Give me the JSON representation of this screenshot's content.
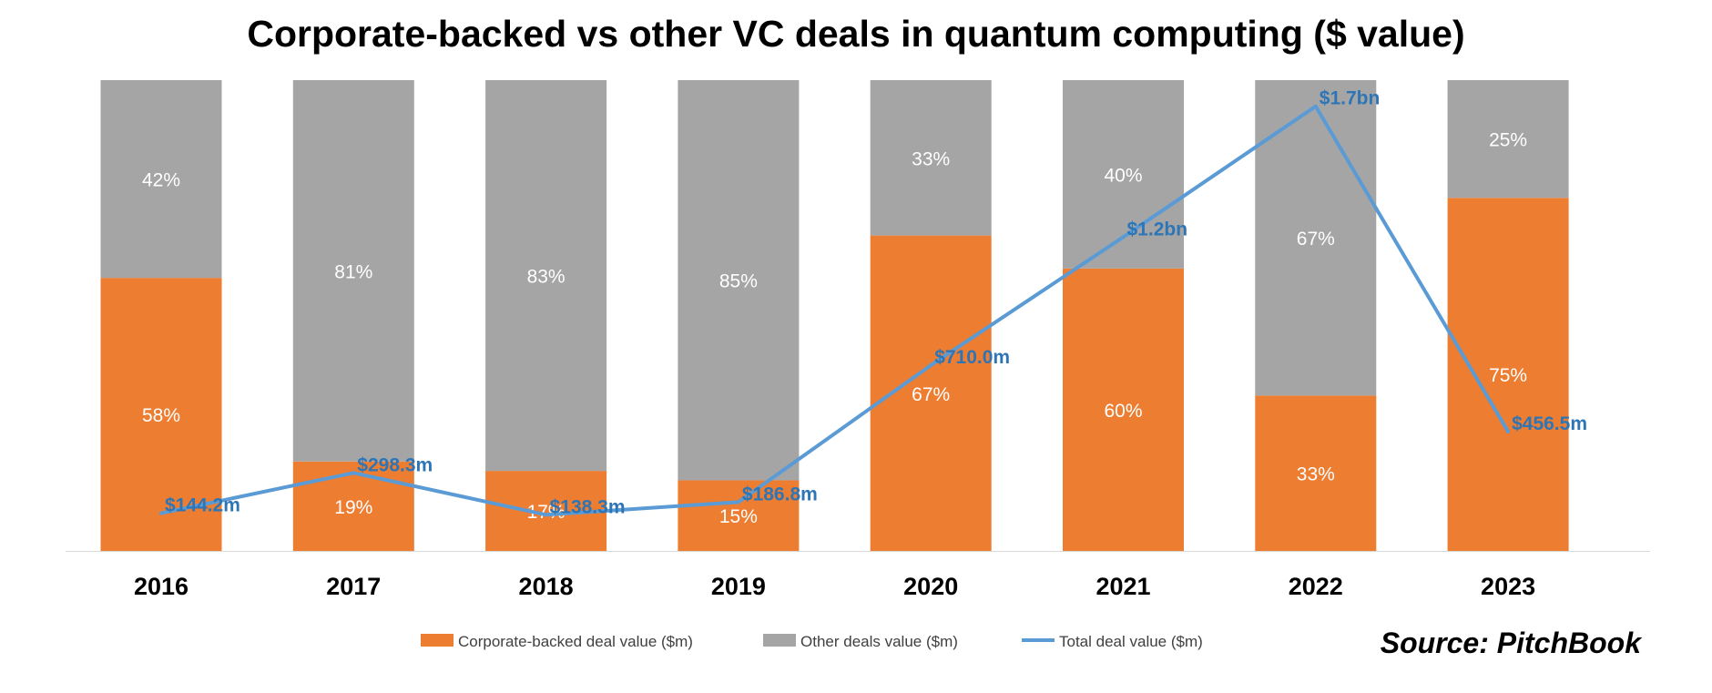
{
  "chart_data": {
    "type": "bar",
    "stacked": "percent",
    "title": "Corporate-backed vs other VC deals in quantum computing ($ value)",
    "source": "Source: PitchBook",
    "categories": [
      "2016",
      "2017",
      "2018",
      "2019",
      "2020",
      "2021",
      "2022",
      "2023"
    ],
    "series": [
      {
        "name": "Corporate-backed deal value ($m)",
        "kind": "bar",
        "color": "#ED7D31",
        "values": [
          58,
          19,
          17,
          15,
          67,
          60,
          33,
          75
        ],
        "labels": [
          "58%",
          "19%",
          "17%",
          "15%",
          "67%",
          "60%",
          "33%",
          "75%"
        ]
      },
      {
        "name": "Other deals value ($m)",
        "kind": "bar",
        "color": "#A5A5A5",
        "values": [
          42,
          81,
          83,
          85,
          33,
          40,
          67,
          25
        ],
        "labels": [
          "42%",
          "81%",
          "83%",
          "85%",
          "33%",
          "40%",
          "67%",
          "25%"
        ]
      },
      {
        "name": "Total deal value ($m)",
        "kind": "line",
        "color": "#5B9BD5",
        "values": [
          144.2,
          298.3,
          138.3,
          186.8,
          710.0,
          1200,
          1700,
          456.5
        ],
        "labels": [
          "$144.2m",
          "$298.3m",
          "$138.3m",
          "$186.8m",
          "$710.0m",
          "$1.2bn",
          "$1.7bn",
          "$456.5m"
        ]
      }
    ],
    "ylim": [
      0,
      100
    ],
    "line_ylim": [
      0,
      1800
    ],
    "grid": false,
    "legend_position": "bottom"
  }
}
